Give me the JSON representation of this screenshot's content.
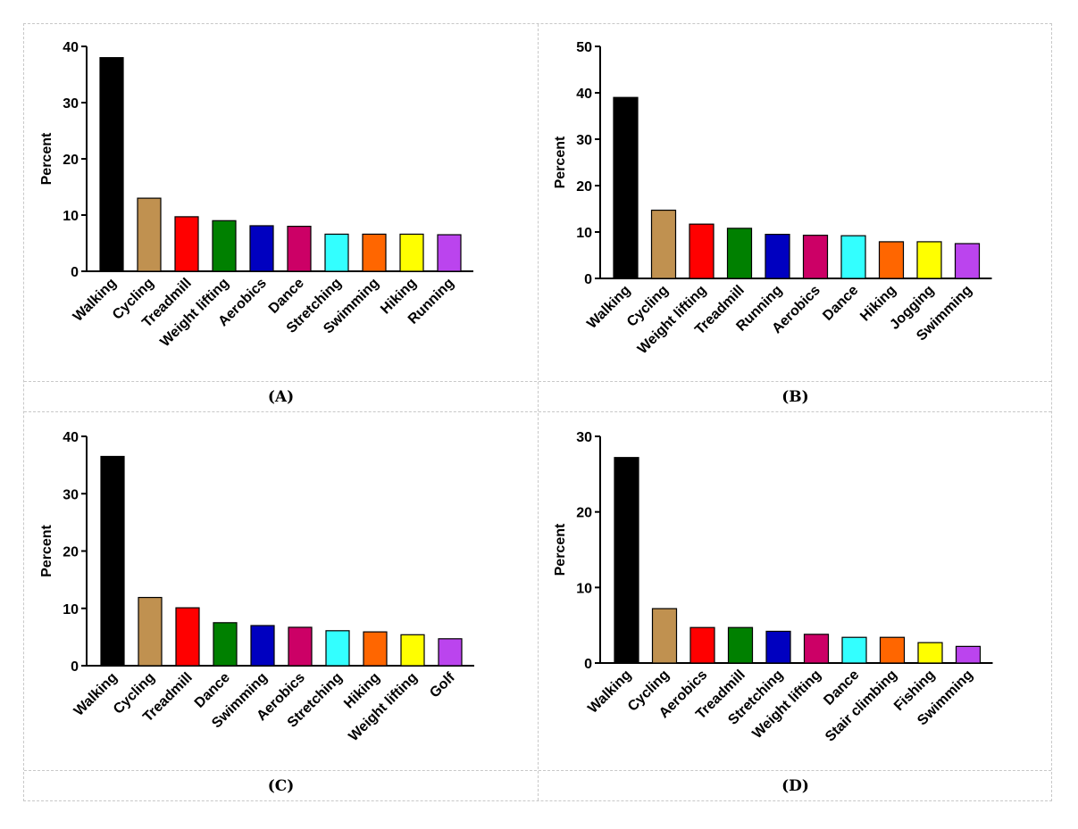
{
  "chart_data": [
    {
      "type": "bar",
      "panel_label": "(A)",
      "ylabel": "Percent",
      "ylim": [
        0,
        40
      ],
      "yticks": [
        0,
        10,
        20,
        30,
        40
      ],
      "categories": [
        "Walking",
        "Cycling",
        "Treadmill",
        "Weight lifting",
        "Aerobics",
        "Dance",
        "Stretching",
        "Swimming",
        "Hiking",
        "Running"
      ],
      "values": [
        38,
        13,
        9.7,
        9,
        8.1,
        8,
        6.6,
        6.6,
        6.6,
        6.5
      ],
      "colors": [
        "#000000",
        "#c09150",
        "#ff0000",
        "#008000",
        "#0000c0",
        "#cc0066",
        "#33ffff",
        "#ff6600",
        "#ffff00",
        "#bb44ee"
      ],
      "grid": false
    },
    {
      "type": "bar",
      "panel_label": "(B)",
      "ylabel": "Percent",
      "ylim": [
        0,
        50
      ],
      "yticks": [
        0,
        10,
        20,
        30,
        40,
        50
      ],
      "categories": [
        "Walking",
        "Cycling",
        "Weight lifting",
        "Treadmill",
        "Running",
        "Aerobics",
        "Dance",
        "Hiking",
        "Jogging",
        "Swimming"
      ],
      "values": [
        39,
        14.7,
        11.7,
        10.8,
        9.5,
        9.3,
        9.2,
        7.9,
        7.9,
        7.5
      ],
      "colors": [
        "#000000",
        "#c09150",
        "#ff0000",
        "#008000",
        "#0000c0",
        "#cc0066",
        "#33ffff",
        "#ff6600",
        "#ffff00",
        "#bb44ee"
      ],
      "grid": false
    },
    {
      "type": "bar",
      "panel_label": "(C)",
      "ylabel": "Percent",
      "ylim": [
        0,
        40
      ],
      "yticks": [
        0,
        10,
        20,
        30,
        40
      ],
      "categories": [
        "Walking",
        "Cycling",
        "Treadmill",
        "Dance",
        "Swimming",
        "Aerobics",
        "Stretching",
        "Hiking",
        "Weight lifting",
        "Golf"
      ],
      "values": [
        36.5,
        11.9,
        10.1,
        7.5,
        7,
        6.7,
        6.1,
        5.9,
        5.4,
        4.7
      ],
      "colors": [
        "#000000",
        "#c09150",
        "#ff0000",
        "#008000",
        "#0000c0",
        "#cc0066",
        "#33ffff",
        "#ff6600",
        "#ffff00",
        "#bb44ee"
      ],
      "grid": false
    },
    {
      "type": "bar",
      "panel_label": "(D)",
      "ylabel": "Percent",
      "ylim": [
        0,
        30
      ],
      "yticks": [
        0,
        10,
        20,
        30
      ],
      "categories": [
        "Walking",
        "Cycling",
        "Aerobics",
        "Treadmill",
        "Stretching",
        "Weight lifting",
        "Dance",
        "Stair climbing",
        "Fishing",
        "Swimming"
      ],
      "values": [
        27.2,
        7.2,
        4.7,
        4.7,
        4.2,
        3.8,
        3.4,
        3.4,
        2.7,
        2.2
      ],
      "colors": [
        "#000000",
        "#c09150",
        "#ff0000",
        "#008000",
        "#0000c0",
        "#cc0066",
        "#33ffff",
        "#ff6600",
        "#ffff00",
        "#bb44ee"
      ],
      "grid": false
    }
  ]
}
